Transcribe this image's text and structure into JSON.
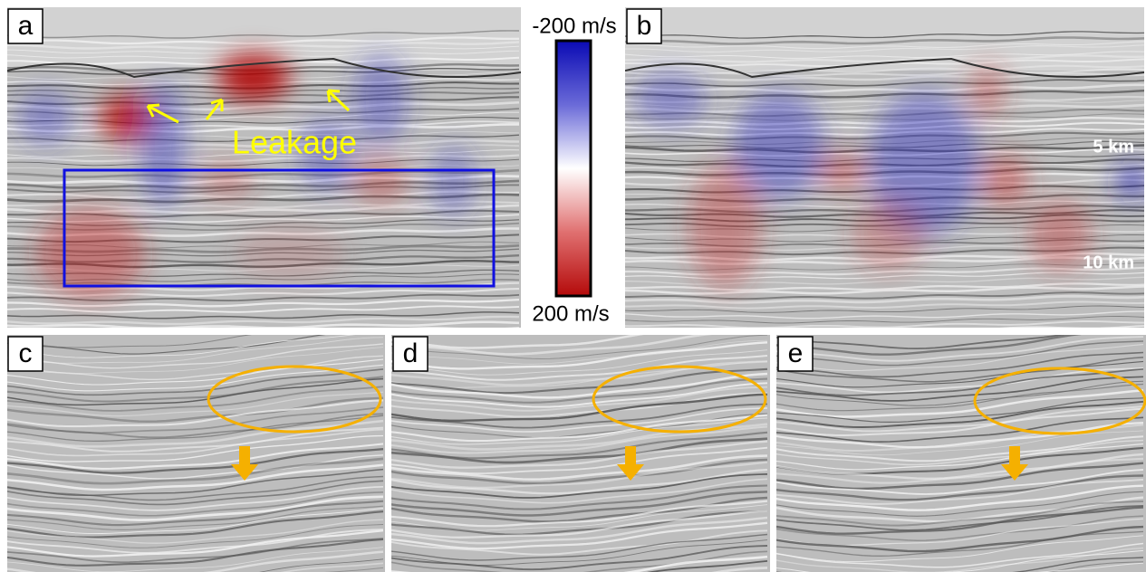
{
  "panels": [
    {
      "label": "a"
    },
    {
      "label": "b"
    },
    {
      "label": "c"
    },
    {
      "label": "d"
    },
    {
      "label": "e"
    }
  ],
  "colorbar": {
    "top_label": "-200 m/s",
    "bottom_label": "200 m/s"
  },
  "annotations": {
    "leakage": "Leakage",
    "depth_5": "5 km",
    "depth_10": "10 km"
  }
}
